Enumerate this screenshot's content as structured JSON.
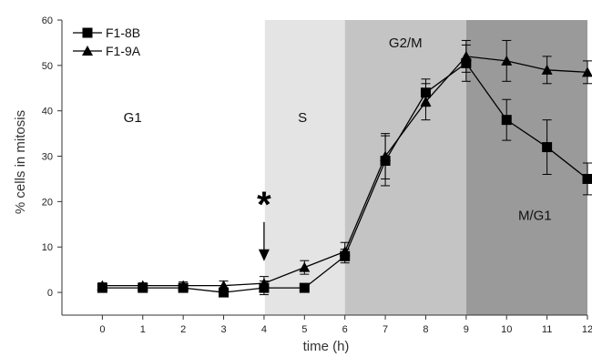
{
  "chart_data": {
    "type": "line",
    "title": "",
    "xlabel": "time (h)",
    "ylabel": "% cells in mitosis",
    "xlim": [
      -1,
      12
    ],
    "ylim": [
      -5,
      60
    ],
    "x_ticks": [
      0,
      1,
      2,
      3,
      4,
      5,
      6,
      7,
      8,
      9,
      10,
      11,
      12
    ],
    "y_ticks": [
      0,
      10,
      20,
      30,
      40,
      50,
      60
    ],
    "grid": false,
    "legend_position": "top-left",
    "phases": [
      {
        "label": "G1",
        "start": -1,
        "end": 6,
        "color": "#ffffff"
      },
      {
        "label": "S",
        "start": 6,
        "end": 6,
        "color": "#e6e6e6"
      },
      {
        "label": "G2/M",
        "start": 6,
        "end": 9,
        "color": "#c6c6c6"
      },
      {
        "label": "M/G1",
        "start": 9,
        "end": 12,
        "color": "#9c9c9c"
      }
    ],
    "series": [
      {
        "name": "F1-8B",
        "marker": "square",
        "x": [
          0,
          1,
          2,
          3,
          4,
          5,
          6,
          7,
          8,
          9,
          10,
          11,
          12
        ],
        "y": [
          1,
          1,
          1,
          0,
          1,
          1,
          8,
          29,
          44,
          50.5,
          38,
          32,
          25
        ],
        "err": [
          0.6,
          0.5,
          0.8,
          0.8,
          1.5,
          0.8,
          1.5,
          5.5,
          3,
          4,
          4.5,
          6,
          3.5
        ]
      },
      {
        "name": "F1-9A",
        "marker": "triangle",
        "x": [
          0,
          1,
          2,
          3,
          4,
          5,
          6,
          7,
          8,
          9,
          10,
          11,
          12
        ],
        "y": [
          1.5,
          1.5,
          1.5,
          1.5,
          2,
          5.5,
          9,
          30,
          42,
          52,
          51,
          49,
          48.5
        ],
        "err": [
          0.6,
          0.6,
          0.8,
          1,
          1.5,
          1.5,
          2,
          5,
          4,
          3.5,
          4.5,
          3,
          2.5
        ]
      }
    ],
    "annotations": [
      {
        "text": "*",
        "x": 4,
        "y": 17.5,
        "arrow_to_y": 7.5
      }
    ]
  }
}
